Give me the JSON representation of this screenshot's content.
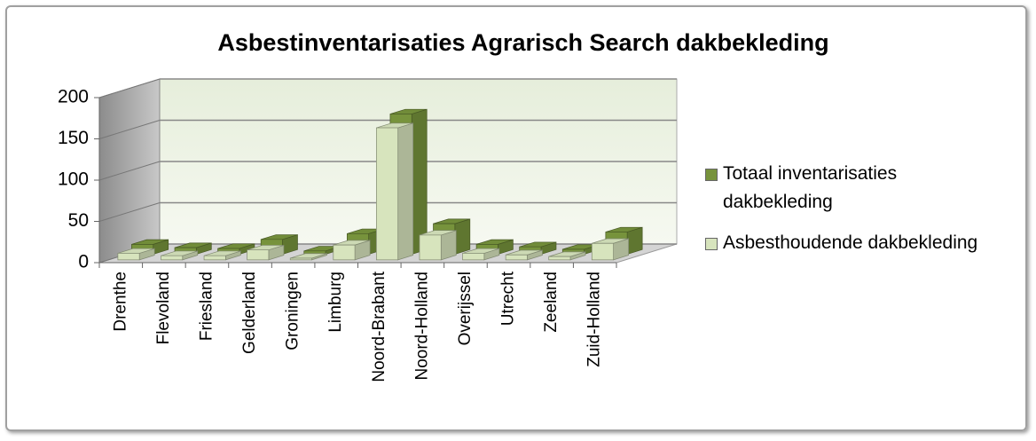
{
  "chart_data": {
    "type": "bar3d",
    "title": "Asbestinventarisaties Agrarisch Search dakbekleding",
    "categories": [
      "Drenthe",
      "Flevoland",
      "Friesland",
      "Gelderland",
      "Groningen",
      "Limburg",
      "Noord-Brabant",
      "Noord-Holland",
      "Overijssel",
      "Utrecht",
      "Zeeland",
      "Zuid-Holland"
    ],
    "series": [
      {
        "name": "Totaal inventarisaties dakbekleding",
        "color": "#77933c",
        "values": [
          12,
          8,
          7,
          18,
          4,
          25,
          170,
          37,
          12,
          9,
          6,
          27
        ]
      },
      {
        "name": "Asbesthoudende dakbekleding",
        "color": "#d7e4bd",
        "values": [
          8,
          5,
          5,
          12,
          2,
          18,
          160,
          30,
          8,
          6,
          4,
          20
        ]
      }
    ],
    "ylim": [
      0,
      200
    ],
    "yticks": [
      0,
      50,
      100,
      150,
      200
    ],
    "grid": true,
    "legend": "right"
  }
}
